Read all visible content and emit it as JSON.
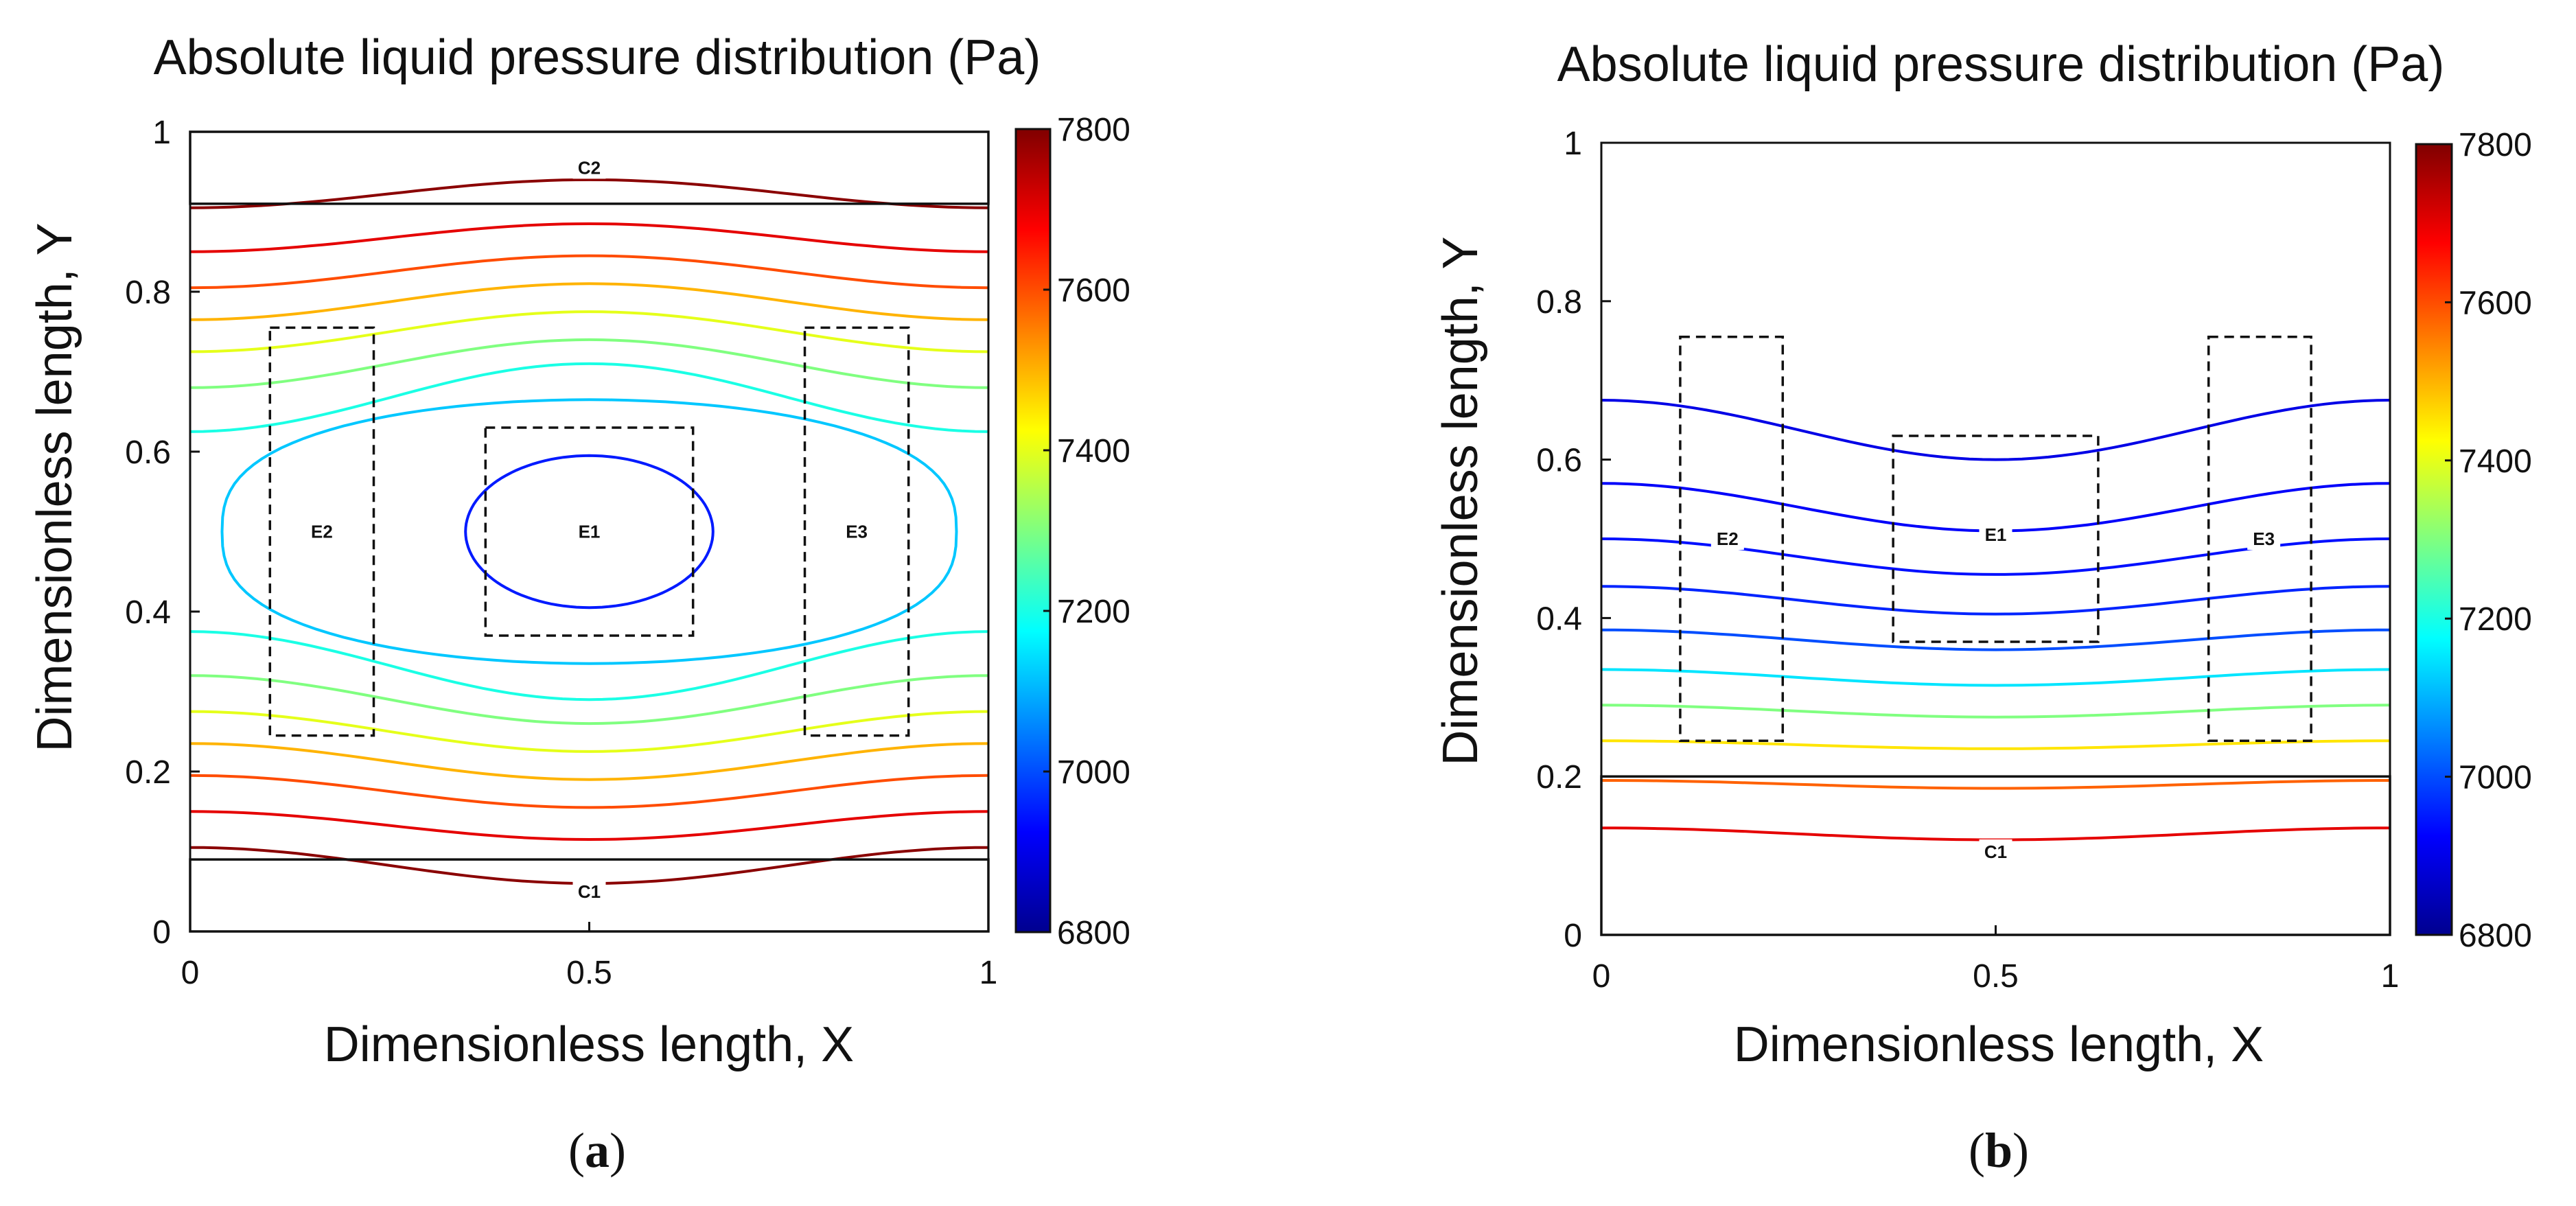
{
  "chart_data": [
    {
      "type": "contour",
      "panel": "(a)",
      "caption_open": "(",
      "caption_letter": "a",
      "caption_close": ")",
      "title": "Absolute liquid pressure distribution (Pa)",
      "xlabel": "Dimensionless length, X",
      "ylabel": "Dimensionless length, Y",
      "xlim": [
        0,
        1
      ],
      "ylim": [
        0,
        1
      ],
      "xticks": [
        {
          "v": 0,
          "label": "0"
        },
        {
          "v": 0.5,
          "label": "0.5"
        },
        {
          "v": 1,
          "label": "1"
        }
      ],
      "yticks": [
        {
          "v": 0,
          "label": "0"
        },
        {
          "v": 0.2,
          "label": "0.2"
        },
        {
          "v": 0.4,
          "label": "0.4"
        },
        {
          "v": 0.6,
          "label": "0.6"
        },
        {
          "v": 0.8,
          "label": "0.8"
        },
        {
          "v": 1,
          "label": "1"
        }
      ],
      "colorbar": {
        "min": 6800,
        "max": 7800,
        "ticks": [
          6800,
          7000,
          7200,
          7400,
          7600,
          7800
        ]
      },
      "channels": [
        {
          "label": "C1",
          "x0": 0,
          "x1": 1,
          "y0": 0,
          "y1": 0.09,
          "label_x": 0.5,
          "label_y": 0.05
        },
        {
          "label": "C2",
          "x0": 0,
          "x1": 1,
          "y0": 0.91,
          "y1": 1.0,
          "label_x": 0.5,
          "label_y": 0.955
        }
      ],
      "electrodes": [
        {
          "label": "E1",
          "x0": 0.37,
          "x1": 0.63,
          "y0": 0.37,
          "y1": 0.63,
          "label_x": 0.5,
          "label_y": 0.5
        },
        {
          "label": "E2",
          "x0": 0.1,
          "x1": 0.23,
          "y0": 0.245,
          "y1": 0.755,
          "label_x": 0.165,
          "label_y": 0.5
        },
        {
          "label": "E3",
          "x0": 0.77,
          "x1": 0.9,
          "y0": 0.245,
          "y1": 0.755,
          "label_x": 0.835,
          "label_y": 0.5
        }
      ],
      "contour_lines": [
        {
          "value": 7790,
          "y_edge": 0.905,
          "y_center": 0.94
        },
        {
          "value": 7700,
          "y_edge": 0.85,
          "y_center": 0.885
        },
        {
          "value": 7600,
          "y_edge": 0.805,
          "y_center": 0.845
        },
        {
          "value": 7500,
          "y_edge": 0.765,
          "y_center": 0.81
        },
        {
          "value": 7400,
          "y_edge": 0.725,
          "y_center": 0.775
        },
        {
          "value": 7300,
          "y_edge": 0.68,
          "y_center": 0.74
        },
        {
          "value": 7200,
          "y_edge": 0.625,
          "y_center": 0.71
        },
        {
          "value": 7200,
          "y_edge": 0.375,
          "y_center": 0.29
        },
        {
          "value": 7300,
          "y_edge": 0.32,
          "y_center": 0.26
        },
        {
          "value": 7400,
          "y_edge": 0.275,
          "y_center": 0.225
        },
        {
          "value": 7500,
          "y_edge": 0.235,
          "y_center": 0.19
        },
        {
          "value": 7600,
          "y_edge": 0.195,
          "y_center": 0.155
        },
        {
          "value": 7700,
          "y_edge": 0.15,
          "y_center": 0.115
        },
        {
          "value": 7790,
          "y_edge": 0.105,
          "y_center": 0.06
        }
      ],
      "closed_contours": [
        {
          "value": 7120,
          "cx": 0.5,
          "cy": 0.5,
          "rx": 0.46,
          "ry": 0.165,
          "pointed": true
        },
        {
          "value": 6950,
          "cx": 0.5,
          "cy": 0.5,
          "rx": 0.155,
          "ry": 0.095,
          "pointed": false
        }
      ]
    },
    {
      "type": "contour",
      "panel": "(b)",
      "caption_open": "(",
      "caption_letter": "b",
      "caption_close": ")",
      "title": "Absolute liquid pressure distribution (Pa)",
      "xlabel": "Dimensionless length, X",
      "ylabel": "Dimensionless length, Y",
      "xlim": [
        0,
        1
      ],
      "ylim": [
        0,
        1
      ],
      "xticks": [
        {
          "v": 0,
          "label": "0"
        },
        {
          "v": 0.5,
          "label": "0.5"
        },
        {
          "v": 1,
          "label": "1"
        }
      ],
      "yticks": [
        {
          "v": 0,
          "label": "0"
        },
        {
          "v": 0.2,
          "label": "0.2"
        },
        {
          "v": 0.4,
          "label": "0.4"
        },
        {
          "v": 0.6,
          "label": "0.6"
        },
        {
          "v": 0.8,
          "label": "0.8"
        },
        {
          "v": 1,
          "label": "1"
        }
      ],
      "colorbar": {
        "min": 6800,
        "max": 7800,
        "ticks": [
          6800,
          7000,
          7200,
          7400,
          7600,
          7800
        ]
      },
      "channels": [
        {
          "label": "C1",
          "x0": 0,
          "x1": 1,
          "y0": 0,
          "y1": 0.2,
          "label_x": 0.5,
          "label_y": 0.105
        }
      ],
      "electrodes": [
        {
          "label": "E1",
          "x0": 0.37,
          "x1": 0.63,
          "y0": 0.37,
          "y1": 0.63,
          "label_x": 0.5,
          "label_y": 0.505
        },
        {
          "label": "E2",
          "x0": 0.1,
          "x1": 0.23,
          "y0": 0.245,
          "y1": 0.755,
          "label_x": 0.16,
          "label_y": 0.5
        },
        {
          "label": "E3",
          "x0": 0.77,
          "x1": 0.9,
          "y0": 0.245,
          "y1": 0.755,
          "label_x": 0.84,
          "label_y": 0.5
        }
      ],
      "contour_lines": [
        {
          "value": 6900,
          "y_edge": 0.675,
          "y_center": 0.6
        },
        {
          "value": 6920,
          "y_edge": 0.57,
          "y_center": 0.51
        },
        {
          "value": 6940,
          "y_edge": 0.5,
          "y_center": 0.455
        },
        {
          "value": 6960,
          "y_edge": 0.44,
          "y_center": 0.405
        },
        {
          "value": 7000,
          "y_edge": 0.385,
          "y_center": 0.36
        },
        {
          "value": 7150,
          "y_edge": 0.335,
          "y_center": 0.315
        },
        {
          "value": 7300,
          "y_edge": 0.29,
          "y_center": 0.275
        },
        {
          "value": 7450,
          "y_edge": 0.245,
          "y_center": 0.235
        },
        {
          "value": 7580,
          "y_edge": 0.195,
          "y_center": 0.185
        },
        {
          "value": 7700,
          "y_edge": 0.135,
          "y_center": 0.12
        }
      ],
      "closed_contours": []
    }
  ]
}
